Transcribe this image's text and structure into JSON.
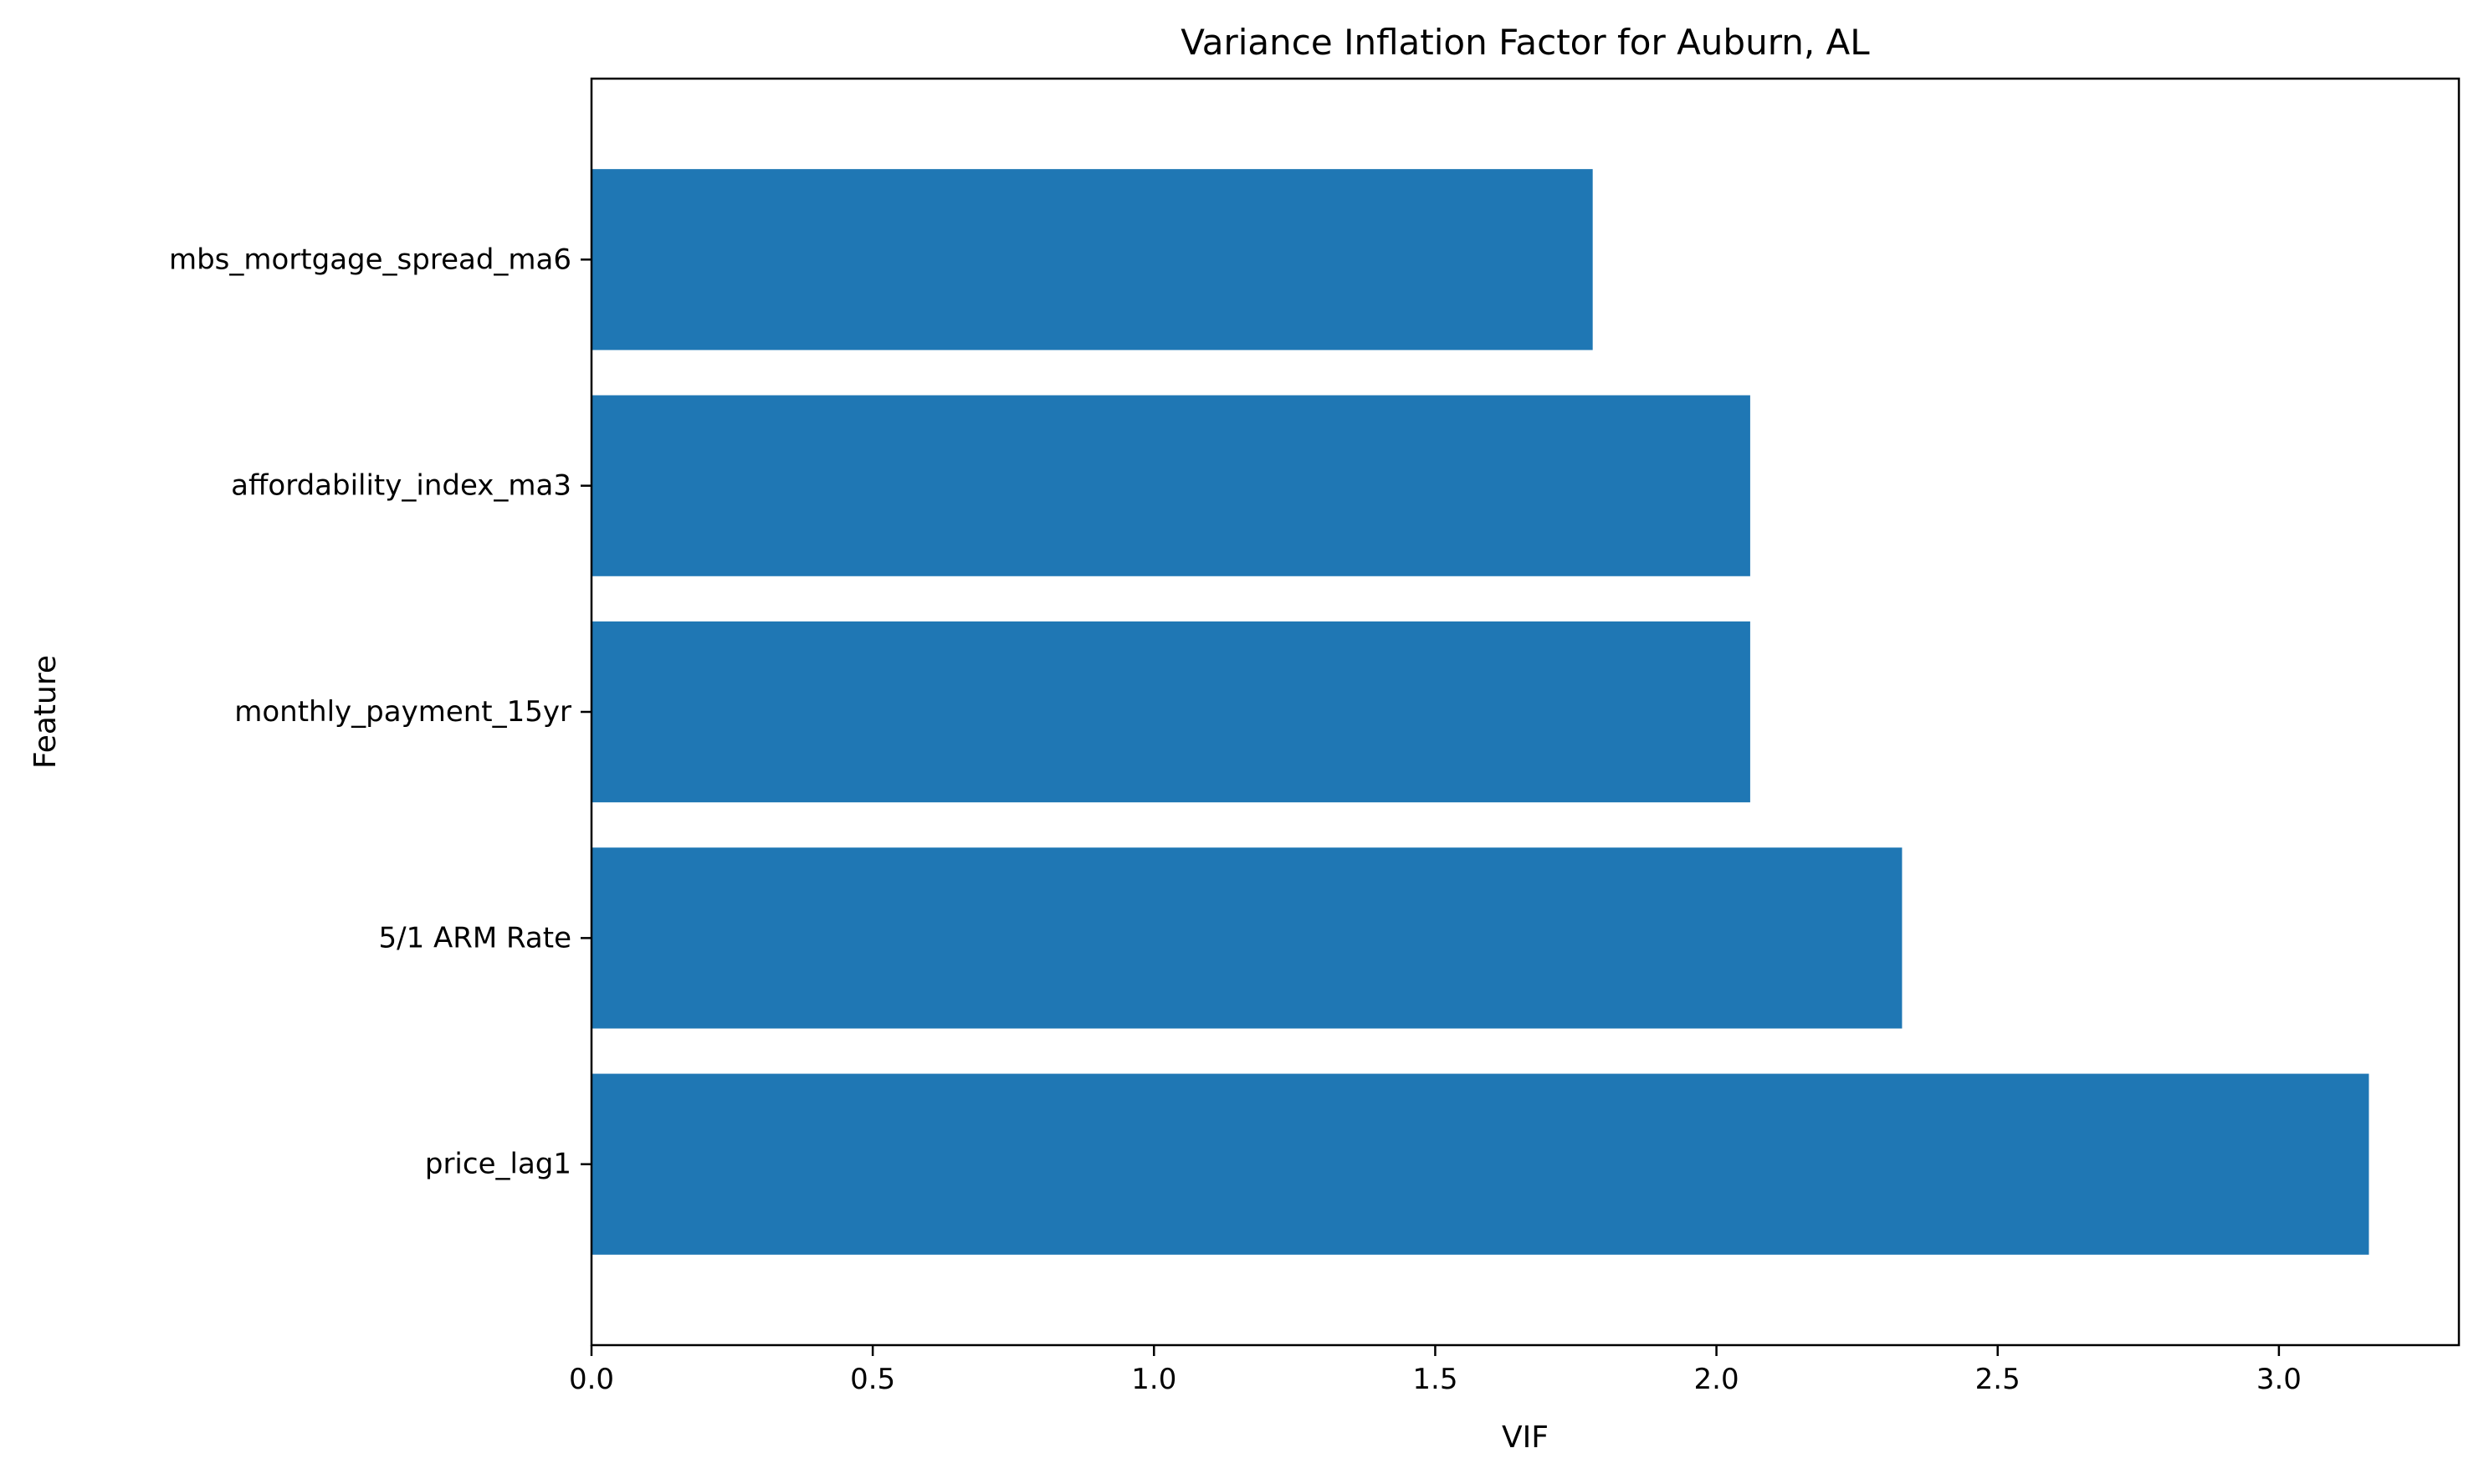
{
  "chart_data": {
    "type": "bar",
    "orientation": "horizontal",
    "title": "Variance Inflation Factor for Auburn, AL",
    "xlabel": "VIF",
    "ylabel": "Feature",
    "categories": [
      "price_lag1",
      "5/1 ARM Rate",
      "monthly_payment_15yr",
      "affordability_index_ma3",
      "mbs_mortgage_spread_ma6"
    ],
    "values": [
      3.16,
      2.33,
      2.06,
      2.06,
      1.78
    ],
    "xlim": [
      0,
      3.32
    ],
    "xticks": [
      0.0,
      0.5,
      1.0,
      1.5,
      2.0,
      2.5,
      3.0
    ],
    "xtick_labels": [
      "0.0",
      "0.5",
      "1.0",
      "1.5",
      "2.0",
      "2.5",
      "3.0"
    ],
    "bar_color": "#1f77b4",
    "grid": false,
    "legend": "none"
  }
}
